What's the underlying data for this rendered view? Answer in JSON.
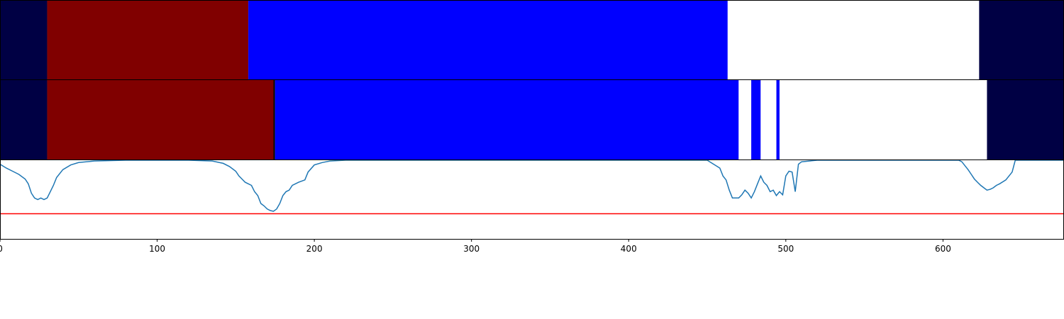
{
  "chart_data": [
    {
      "type": "heatmap",
      "panel": "top-band",
      "segments": [
        {
          "start": 0,
          "end": 30,
          "color": "#000044"
        },
        {
          "start": 30,
          "end": 158,
          "color": "#800000"
        },
        {
          "start": 158,
          "end": 463,
          "color": "#0000ff"
        },
        {
          "start": 463,
          "end": 623,
          "color": "#ffffff"
        },
        {
          "start": 623,
          "end": 677,
          "color": "#000044"
        }
      ]
    },
    {
      "type": "heatmap",
      "panel": "middle-band",
      "segments": [
        {
          "start": 0,
          "end": 30,
          "color": "#000044"
        },
        {
          "start": 30,
          "end": 174,
          "color": "#800000"
        },
        {
          "start": 174,
          "end": 175,
          "color": "#000000"
        },
        {
          "start": 175,
          "end": 470,
          "color": "#0000ff"
        },
        {
          "start": 470,
          "end": 478,
          "color": "#ffffff"
        },
        {
          "start": 478,
          "end": 484,
          "color": "#0000ff"
        },
        {
          "start": 484,
          "end": 494,
          "color": "#ffffff"
        },
        {
          "start": 494,
          "end": 496,
          "color": "#0000ff"
        },
        {
          "start": 496,
          "end": 628,
          "color": "#ffffff"
        },
        {
          "start": 628,
          "end": 677,
          "color": "#000044"
        }
      ]
    },
    {
      "type": "line",
      "panel": "bottom-line",
      "xlim": [
        0,
        677
      ],
      "ylim": [
        0,
        1
      ],
      "threshold": {
        "y": 0.32,
        "color": "#ff0000"
      },
      "series": [
        {
          "color": "#1f77b4",
          "x": [
            0,
            4,
            8,
            12,
            16,
            18,
            20,
            22,
            24,
            26,
            28,
            30,
            32,
            34,
            36,
            40,
            45,
            50,
            60,
            80,
            100,
            120,
            135,
            142,
            146,
            150,
            152,
            154,
            156,
            158,
            160,
            162,
            164,
            166,
            168,
            170,
            172,
            174,
            176,
            178,
            180,
            182,
            184,
            186,
            190,
            194,
            196,
            200,
            205,
            210,
            220,
            250,
            300,
            350,
            400,
            450,
            458,
            460,
            462,
            464,
            466,
            468,
            470,
            472,
            474,
            476,
            478,
            480,
            482,
            484,
            486,
            488,
            490,
            492,
            494,
            496,
            498,
            500,
            502,
            504,
            506,
            508,
            510,
            515,
            520,
            540,
            580,
            610,
            612,
            614,
            616,
            618,
            620,
            622,
            624,
            626,
            628,
            630,
            632,
            634,
            636,
            640,
            644,
            646,
            677
          ],
          "y": [
            0.95,
            0.9,
            0.86,
            0.82,
            0.76,
            0.7,
            0.58,
            0.52,
            0.5,
            0.52,
            0.5,
            0.52,
            0.6,
            0.68,
            0.78,
            0.88,
            0.94,
            0.97,
            0.99,
            1.0,
            1.0,
            1.0,
            0.99,
            0.96,
            0.92,
            0.86,
            0.8,
            0.76,
            0.72,
            0.7,
            0.68,
            0.6,
            0.55,
            0.45,
            0.42,
            0.38,
            0.36,
            0.35,
            0.38,
            0.45,
            0.55,
            0.6,
            0.62,
            0.68,
            0.72,
            0.75,
            0.85,
            0.94,
            0.97,
            0.99,
            1.0,
            1.0,
            1.0,
            1.0,
            1.0,
            1.0,
            0.9,
            0.8,
            0.75,
            0.62,
            0.52,
            0.52,
            0.52,
            0.56,
            0.62,
            0.58,
            0.52,
            0.6,
            0.7,
            0.8,
            0.72,
            0.68,
            0.6,
            0.62,
            0.55,
            0.6,
            0.56,
            0.8,
            0.86,
            0.85,
            0.6,
            0.95,
            0.98,
            0.99,
            1.0,
            1.0,
            1.0,
            1.0,
            0.98,
            0.93,
            0.88,
            0.82,
            0.76,
            0.72,
            0.68,
            0.65,
            0.62,
            0.63,
            0.65,
            0.68,
            0.7,
            0.75,
            0.85,
            1.0,
            1.0
          ]
        }
      ],
      "xticks": [
        0,
        100,
        200,
        300,
        400,
        500,
        600
      ],
      "xtick_labels": [
        "0",
        "100",
        "200",
        "300",
        "400",
        "500",
        "600"
      ]
    }
  ]
}
